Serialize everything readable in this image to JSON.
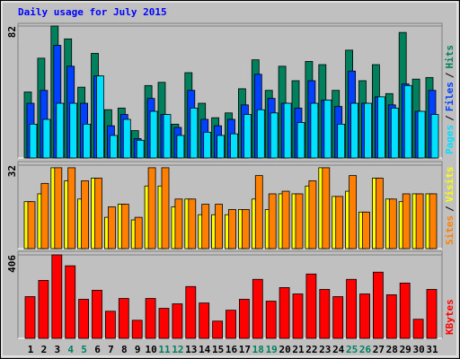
{
  "chart_data": [
    {
      "type": "bar",
      "title": "Daily usage for July 2015",
      "ylim": [
        0,
        82
      ],
      "yticks": [
        82
      ],
      "legend_separator": "/",
      "series": [
        {
          "name": "Hits",
          "color": "#00805c",
          "values": [
            41,
            62,
            82,
            74,
            44,
            65,
            30,
            31,
            17,
            45,
            47,
            21,
            53,
            34,
            25,
            28,
            43,
            61,
            42,
            57,
            48,
            60,
            58,
            42,
            67,
            48,
            58,
            40,
            78,
            49,
            50
          ]
        },
        {
          "name": "Files",
          "color": "#0040ff",
          "values": [
            34,
            42,
            70,
            57,
            34,
            51,
            20,
            27,
            12,
            37,
            27,
            19,
            42,
            24,
            20,
            24,
            33,
            52,
            37,
            34,
            31,
            48,
            36,
            32,
            54,
            34,
            38,
            33,
            46,
            29,
            42
          ]
        },
        {
          "name": "Pages",
          "color": "#00e0ff",
          "values": [
            21,
            24,
            34,
            34,
            21,
            51,
            14,
            24,
            11,
            29,
            27,
            14,
            31,
            16,
            14,
            15,
            27,
            30,
            28,
            34,
            22,
            34,
            36,
            21,
            34,
            34,
            38,
            31,
            45,
            29,
            27
          ]
        }
      ]
    },
    {
      "type": "bar",
      "ylim": [
        0,
        32
      ],
      "yticks": [
        32
      ],
      "legend_separator": "/",
      "series": [
        {
          "name": "Visits",
          "color": "#ffff00",
          "values": [
            18,
            21,
            31,
            26,
            19,
            27,
            12,
            17,
            11,
            24,
            24,
            16,
            19,
            13,
            13,
            13,
            15,
            19,
            15,
            21,
            21,
            24,
            31,
            20,
            22,
            14,
            27,
            19,
            18,
            21,
            21
          ]
        },
        {
          "name": "Sites",
          "color": "#ff8000",
          "values": [
            18,
            25,
            31,
            31,
            26,
            27,
            16,
            17,
            12,
            31,
            31,
            19,
            19,
            17,
            17,
            15,
            15,
            28,
            21,
            22,
            21,
            26,
            31,
            20,
            28,
            14,
            27,
            19,
            21,
            21,
            21
          ]
        }
      ]
    },
    {
      "type": "bar",
      "ylim": [
        0,
        406
      ],
      "yticks": [
        406
      ],
      "categories": [
        "1",
        "2",
        "3",
        "4",
        "5",
        "6",
        "7",
        "8",
        "9",
        "10",
        "11",
        "12",
        "13",
        "14",
        "15",
        "16",
        "17",
        "18",
        "19",
        "20",
        "21",
        "22",
        "23",
        "24",
        "25",
        "26",
        "27",
        "28",
        "29",
        "30",
        "31"
      ],
      "label_colors": [
        "#000",
        "#000",
        "#000",
        "#00805c",
        "#00805c",
        "#000",
        "#000",
        "#000",
        "#000",
        "#000",
        "#00805c",
        "#00805c",
        "#000",
        "#000",
        "#000",
        "#000",
        "#000",
        "#00805c",
        "#00805c",
        "#000",
        "#000",
        "#000",
        "#000",
        "#000",
        "#00805c",
        "#00805c",
        "#000",
        "#000",
        "#000",
        "#000",
        "#000"
      ],
      "series": [
        {
          "name": "KBytes",
          "color": "#ff0000",
          "values": [
            203,
            282,
            406,
            353,
            190,
            234,
            132,
            194,
            88,
            194,
            146,
            168,
            252,
            172,
            84,
            137,
            190,
            287,
            181,
            247,
            216,
            313,
            238,
            203,
            287,
            216,
            322,
            212,
            269,
            93,
            238
          ]
        }
      ]
    }
  ]
}
